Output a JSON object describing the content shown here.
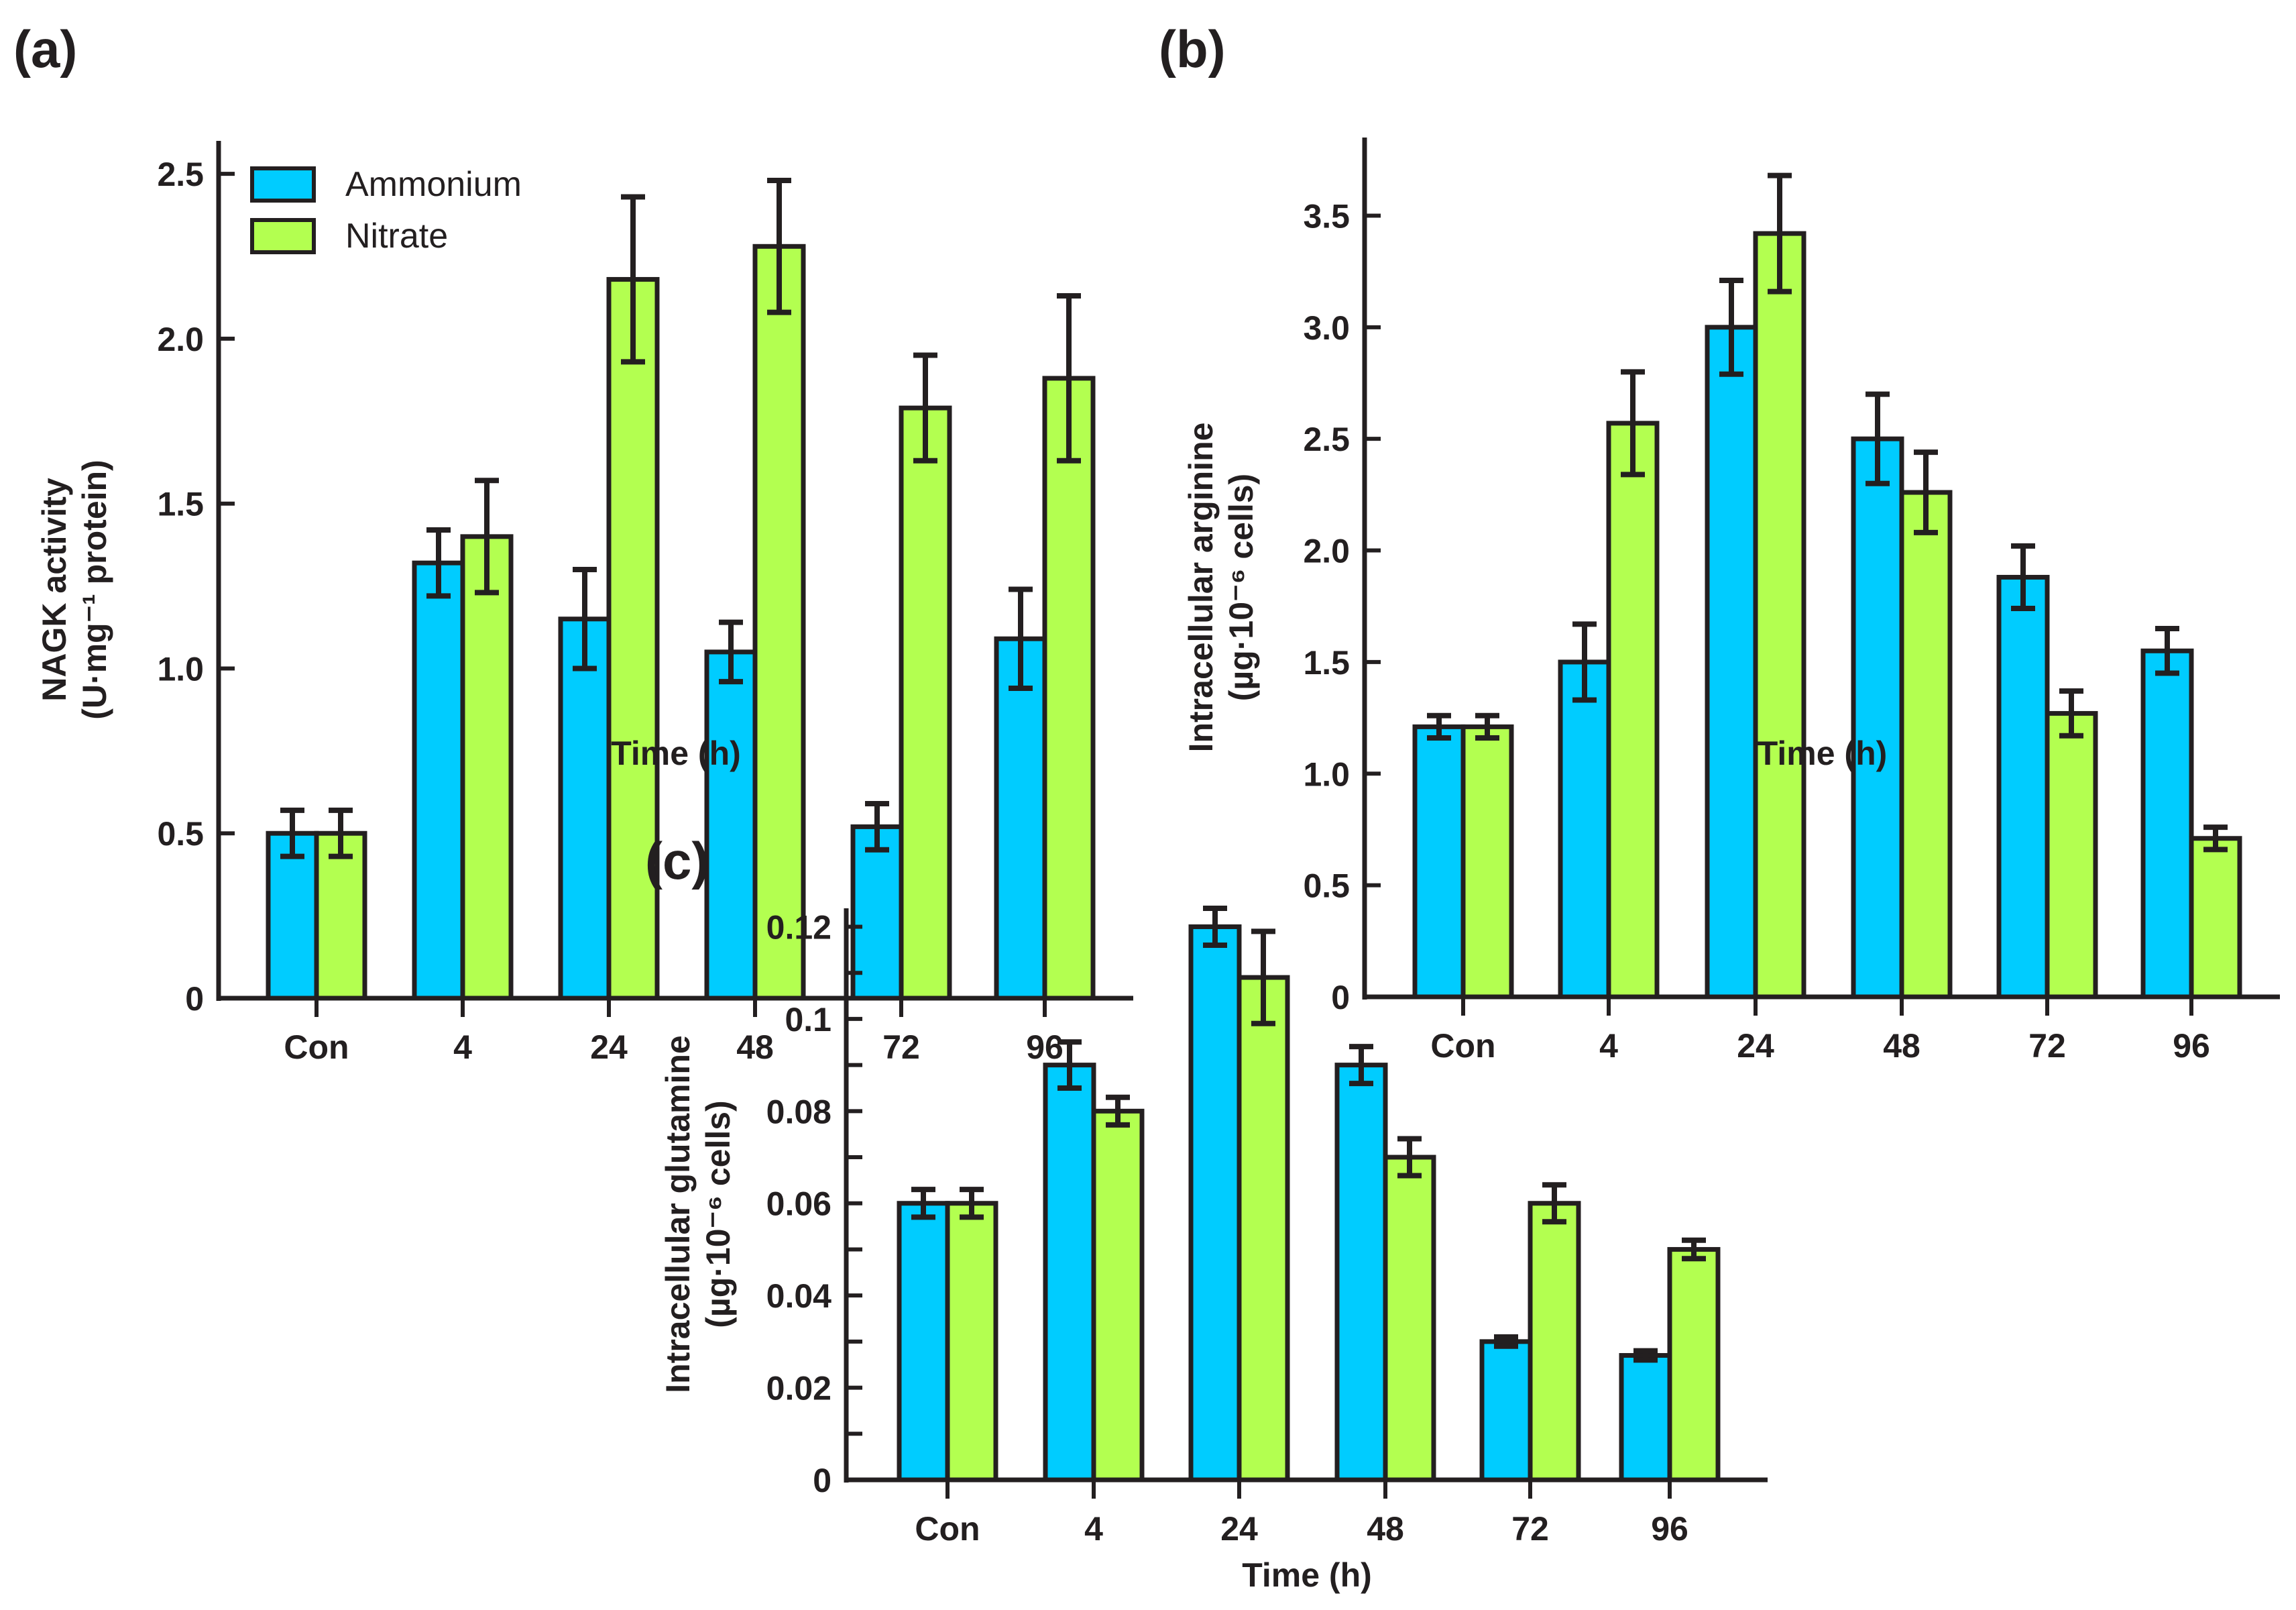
{
  "colors": {
    "Ammonium": "#00ccff",
    "Nitrate": "#b3ff50",
    "axis": "#231f20"
  },
  "chart_data": [
    {
      "type": "bar",
      "panel": "(a)",
      "categories": [
        "Con",
        "4",
        "24",
        "48",
        "72",
        "96"
      ],
      "xlabel": "Time (h)",
      "ylabel": [
        "NAGK activity",
        "(U·mg⁻¹ protein)"
      ],
      "ylim": [
        0,
        2.6
      ],
      "yticks": [
        0,
        0.5,
        1.0,
        1.5,
        2.0,
        2.5
      ],
      "ytick_labels": [
        "0",
        "0.5",
        "1.0",
        "1.5",
        "2.0",
        "2.5"
      ],
      "legend": {
        "placement": "top-left",
        "entries": [
          "Ammonium",
          "Nitrate"
        ]
      },
      "series": [
        {
          "name": "Ammonium",
          "values": [
            0.5,
            1.32,
            1.15,
            1.05,
            0.52,
            1.09
          ],
          "errors": [
            0.07,
            0.1,
            0.15,
            0.09,
            0.07,
            0.15
          ]
        },
        {
          "name": "Nitrate",
          "values": [
            0.5,
            1.4,
            2.18,
            2.28,
            1.79,
            1.88
          ],
          "errors": [
            0.07,
            0.17,
            0.25,
            0.2,
            0.16,
            0.25
          ]
        }
      ]
    },
    {
      "type": "bar",
      "panel": "(b)",
      "categories": [
        "Con",
        "4",
        "24",
        "48",
        "72",
        "96"
      ],
      "xlabel": "Time (h)",
      "ylabel": [
        "Intracellular arginine",
        "(µg·10⁻⁶ cells)"
      ],
      "ylim": [
        0,
        3.85
      ],
      "yticks": [
        0,
        0.5,
        1.0,
        1.5,
        2.0,
        2.5,
        3.0,
        3.5
      ],
      "ytick_labels": [
        "0",
        "0.5",
        "1.0",
        "1.5",
        "2.0",
        "2.5",
        "3.0",
        "3.5"
      ],
      "series": [
        {
          "name": "Ammonium",
          "values": [
            1.21,
            1.5,
            3.0,
            2.5,
            1.88,
            1.55
          ],
          "errors": [
            0.05,
            0.17,
            0.21,
            0.2,
            0.14,
            0.1
          ]
        },
        {
          "name": "Nitrate",
          "values": [
            1.21,
            2.57,
            3.42,
            2.26,
            1.27,
            0.71
          ],
          "errors": [
            0.05,
            0.23,
            0.26,
            0.18,
            0.1,
            0.05
          ]
        }
      ]
    },
    {
      "type": "bar",
      "panel": "(c)",
      "categories": [
        "Con",
        "4",
        "24",
        "48",
        "72",
        "96"
      ],
      "xlabel": "Time (h)",
      "ylabel": [
        "Intracellular glutamine",
        "(µg·10⁻⁶ cells)"
      ],
      "ylim": [
        0,
        0.124
      ],
      "yticks": [
        0,
        0.02,
        0.04,
        0.06,
        0.08,
        0.1,
        0.12
      ],
      "ytick_labels": [
        "0",
        "0.02",
        "0.04",
        "0.06",
        "0.08",
        "0.1",
        "0.12"
      ],
      "minor_step": 0.01,
      "series": [
        {
          "name": "Ammonium",
          "values": [
            0.06,
            0.09,
            0.12,
            0.09,
            0.03,
            0.027
          ],
          "errors": [
            0.003,
            0.005,
            0.004,
            0.004,
            0.001,
            0.001
          ]
        },
        {
          "name": "Nitrate",
          "values": [
            0.06,
            0.08,
            0.109,
            0.07,
            0.06,
            0.05
          ],
          "errors": [
            0.003,
            0.003,
            0.01,
            0.004,
            0.004,
            0.002
          ]
        }
      ]
    }
  ]
}
